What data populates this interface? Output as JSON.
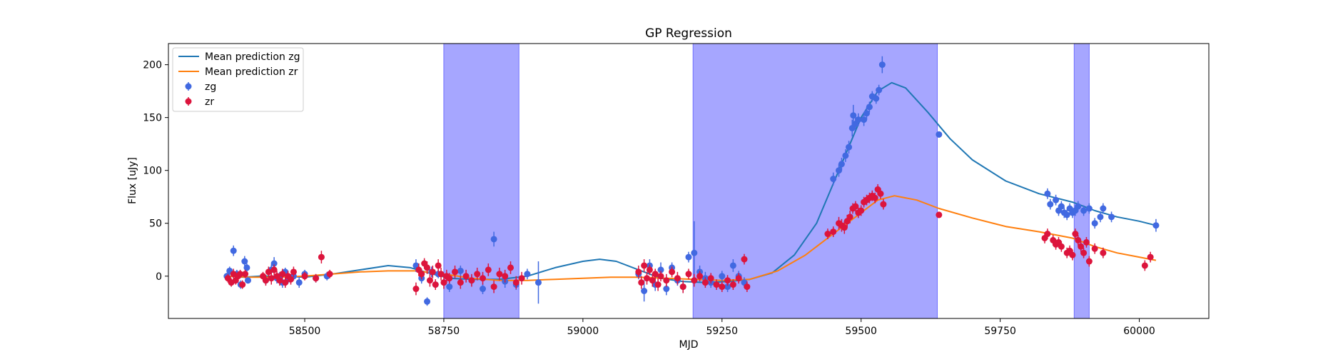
{
  "chart_data": {
    "type": "scatter",
    "title": "GP Regression",
    "xlabel": "MJD",
    "ylabel": "Flux [uJy]",
    "xlim": [
      58255,
      60125
    ],
    "ylim": [
      -40,
      220
    ],
    "xticks": [
      58500,
      58750,
      59000,
      59250,
      59500,
      59750,
      60000
    ],
    "yticks": [
      0,
      50,
      100,
      150,
      200
    ],
    "legend": {
      "position": "top-left",
      "entries": [
        "Mean prediction zg",
        "Mean prediction zr",
        "zg",
        "zr"
      ]
    },
    "shaded_regions": [
      {
        "x0": 58750,
        "x1": 58885,
        "color": "#a6a6ff"
      },
      {
        "x0": 59198,
        "x1": 59637,
        "color": "#a6a6ff"
      },
      {
        "x0": 59883,
        "x1": 59910,
        "color": "#a6a6ff"
      }
    ],
    "series": [
      {
        "name": "Mean prediction zg",
        "kind": "line",
        "color": "#1f77b4",
        "x": [
          58360,
          58390,
          58420,
          58460,
          58500,
          58550,
          58600,
          58650,
          58690,
          58730,
          58760,
          58800,
          58850,
          58900,
          58950,
          59000,
          59030,
          59060,
          59100,
          59140,
          59180,
          59220,
          59260,
          59300,
          59340,
          59380,
          59420,
          59460,
          59500,
          59530,
          59555,
          59580,
          59620,
          59660,
          59700,
          59760,
          59820,
          59880,
          59920,
          59960,
          60000,
          60030
        ],
        "y": [
          0,
          -1,
          0,
          0,
          -1,
          2,
          6,
          10,
          8,
          2,
          -2,
          -3,
          -3,
          0,
          8,
          14,
          16,
          14,
          6,
          -2,
          -5,
          -6,
          -5,
          -3,
          3,
          20,
          50,
          100,
          150,
          175,
          183,
          178,
          155,
          130,
          110,
          90,
          78,
          70,
          62,
          56,
          52,
          48
        ]
      },
      {
        "name": "Mean prediction zr",
        "kind": "line",
        "color": "#ff7f0e",
        "x": [
          58360,
          58400,
          58450,
          58500,
          58550,
          58600,
          58650,
          58700,
          58750,
          58800,
          58850,
          58900,
          58950,
          59000,
          59050,
          59100,
          59150,
          59200,
          59250,
          59300,
          59350,
          59400,
          59450,
          59500,
          59530,
          59560,
          59600,
          59640,
          59700,
          59760,
          59820,
          59880,
          59920,
          59960,
          60000,
          60030
        ],
        "y": [
          0,
          -1,
          -1,
          0,
          2,
          4,
          5,
          5,
          2,
          -2,
          -4,
          -4,
          -3,
          -2,
          -1,
          -1,
          -2,
          -3,
          -4,
          -3,
          5,
          20,
          40,
          60,
          72,
          76,
          72,
          64,
          55,
          47,
          42,
          36,
          28,
          22,
          18,
          15
        ]
      },
      {
        "name": "zg",
        "kind": "errorbar",
        "color": "#4169e1",
        "points": [
          [
            58360,
            0,
            3
          ],
          [
            58365,
            5,
            4
          ],
          [
            58372,
            24,
            5
          ],
          [
            58378,
            2,
            4
          ],
          [
            58385,
            -8,
            4
          ],
          [
            58392,
            14,
            5
          ],
          [
            58396,
            8,
            4
          ],
          [
            58398,
            -4,
            3
          ],
          [
            58430,
            -4,
            4
          ],
          [
            58440,
            6,
            5
          ],
          [
            58445,
            12,
            6
          ],
          [
            58450,
            -2,
            5
          ],
          [
            58455,
            0,
            4
          ],
          [
            58460,
            -6,
            5
          ],
          [
            58465,
            4,
            4
          ],
          [
            58470,
            -3,
            4
          ],
          [
            58480,
            0,
            4
          ],
          [
            58490,
            -6,
            5
          ],
          [
            58500,
            2,
            4
          ],
          [
            58520,
            -2,
            4
          ],
          [
            58540,
            0,
            4
          ],
          [
            58700,
            10,
            6
          ],
          [
            58710,
            -2,
            5
          ],
          [
            58720,
            -24,
            4
          ],
          [
            58728,
            4,
            5
          ],
          [
            58735,
            -8,
            5
          ],
          [
            58740,
            2,
            4
          ],
          [
            58760,
            -10,
            5
          ],
          [
            58780,
            5,
            5
          ],
          [
            58800,
            -4,
            5
          ],
          [
            58820,
            -12,
            5
          ],
          [
            58840,
            35,
            7
          ],
          [
            58860,
            -5,
            6
          ],
          [
            58880,
            -8,
            5
          ],
          [
            58900,
            2,
            5
          ],
          [
            58920,
            -6,
            20
          ],
          [
            59100,
            2,
            5
          ],
          [
            59110,
            -14,
            10
          ],
          [
            59120,
            10,
            6
          ],
          [
            59130,
            -8,
            6
          ],
          [
            59140,
            6,
            7
          ],
          [
            59150,
            -12,
            6
          ],
          [
            59160,
            8,
            5
          ],
          [
            59170,
            -4,
            5
          ],
          [
            59180,
            -10,
            6
          ],
          [
            59190,
            18,
            5
          ],
          [
            59200,
            22,
            30
          ],
          [
            59210,
            4,
            6
          ],
          [
            59220,
            -2,
            6
          ],
          [
            59230,
            -6,
            5
          ],
          [
            59250,
            0,
            5
          ],
          [
            59260,
            -10,
            5
          ],
          [
            59270,
            10,
            6
          ],
          [
            59280,
            0,
            5
          ],
          [
            59290,
            -6,
            5
          ],
          [
            59450,
            92,
            6
          ],
          [
            59460,
            100,
            6
          ],
          [
            59465,
            106,
            6
          ],
          [
            59472,
            114,
            6
          ],
          [
            59478,
            122,
            6
          ],
          [
            59484,
            140,
            8
          ],
          [
            59486,
            152,
            10
          ],
          [
            59490,
            144,
            6
          ],
          [
            59495,
            148,
            6
          ],
          [
            59505,
            148,
            6
          ],
          [
            59510,
            154,
            6
          ],
          [
            59515,
            160,
            5
          ],
          [
            59520,
            170,
            5
          ],
          [
            59527,
            168,
            5
          ],
          [
            59532,
            176,
            5
          ],
          [
            59538,
            200,
            8
          ],
          [
            59640,
            134,
            3
          ],
          [
            59835,
            78,
            5
          ],
          [
            59840,
            68,
            5
          ],
          [
            59850,
            72,
            5
          ],
          [
            59855,
            62,
            5
          ],
          [
            59860,
            66,
            5
          ],
          [
            59865,
            60,
            5
          ],
          [
            59870,
            58,
            5
          ],
          [
            59875,
            64,
            5
          ],
          [
            59880,
            60,
            5
          ],
          [
            59885,
            62,
            5
          ],
          [
            59890,
            66,
            5
          ],
          [
            59900,
            62,
            5
          ],
          [
            59910,
            64,
            5
          ],
          [
            59920,
            50,
            5
          ],
          [
            59930,
            56,
            5
          ],
          [
            59935,
            64,
            5
          ],
          [
            59950,
            56,
            5
          ],
          [
            60030,
            48,
            6
          ]
        ]
      },
      {
        "name": "zr",
        "kind": "errorbar",
        "color": "#dc143c",
        "points": [
          [
            58362,
            -2,
            4
          ],
          [
            58368,
            -6,
            4
          ],
          [
            58372,
            2,
            5
          ],
          [
            58376,
            -4,
            4
          ],
          [
            58380,
            0,
            4
          ],
          [
            58384,
            2,
            4
          ],
          [
            58388,
            -8,
            4
          ],
          [
            58393,
            2,
            4
          ],
          [
            58425,
            0,
            4
          ],
          [
            58430,
            -4,
            5
          ],
          [
            58435,
            4,
            5
          ],
          [
            58440,
            -2,
            6
          ],
          [
            58445,
            6,
            5
          ],
          [
            58450,
            0,
            5
          ],
          [
            58455,
            -4,
            5
          ],
          [
            58460,
            2,
            5
          ],
          [
            58465,
            -6,
            5
          ],
          [
            58470,
            0,
            5
          ],
          [
            58475,
            -3,
            5
          ],
          [
            58480,
            4,
            5
          ],
          [
            58500,
            0,
            4
          ],
          [
            58520,
            -2,
            4
          ],
          [
            58530,
            18,
            6
          ],
          [
            58545,
            2,
            4
          ],
          [
            58700,
            -12,
            6
          ],
          [
            58705,
            6,
            6
          ],
          [
            58710,
            2,
            5
          ],
          [
            58715,
            12,
            5
          ],
          [
            58720,
            8,
            6
          ],
          [
            58725,
            -4,
            6
          ],
          [
            58730,
            4,
            6
          ],
          [
            58735,
            -8,
            5
          ],
          [
            58740,
            10,
            6
          ],
          [
            58745,
            2,
            6
          ],
          [
            58750,
            -6,
            6
          ],
          [
            58755,
            0,
            6
          ],
          [
            58760,
            -2,
            5
          ],
          [
            58770,
            4,
            6
          ],
          [
            58780,
            -6,
            6
          ],
          [
            58790,
            0,
            6
          ],
          [
            58800,
            -4,
            6
          ],
          [
            58810,
            2,
            6
          ],
          [
            58820,
            -2,
            6
          ],
          [
            58830,
            6,
            6
          ],
          [
            58840,
            -10,
            6
          ],
          [
            58850,
            2,
            6
          ],
          [
            58860,
            0,
            6
          ],
          [
            58870,
            8,
            6
          ],
          [
            58880,
            -6,
            6
          ],
          [
            58890,
            -2,
            6
          ],
          [
            59100,
            4,
            6
          ],
          [
            59105,
            -6,
            6
          ],
          [
            59110,
            10,
            6
          ],
          [
            59115,
            -2,
            6
          ],
          [
            59120,
            6,
            5
          ],
          [
            59125,
            -4,
            6
          ],
          [
            59130,
            2,
            5
          ],
          [
            59135,
            -8,
            6
          ],
          [
            59140,
            0,
            5
          ],
          [
            59150,
            -4,
            6
          ],
          [
            59160,
            4,
            5
          ],
          [
            59170,
            -2,
            6
          ],
          [
            59180,
            -10,
            6
          ],
          [
            59190,
            2,
            5
          ],
          [
            59200,
            -4,
            6
          ],
          [
            59210,
            0,
            5
          ],
          [
            59220,
            -6,
            5
          ],
          [
            59230,
            -2,
            5
          ],
          [
            59240,
            -8,
            5
          ],
          [
            59250,
            -10,
            5
          ],
          [
            59260,
            -4,
            5
          ],
          [
            59270,
            -8,
            5
          ],
          [
            59280,
            -2,
            5
          ],
          [
            59290,
            16,
            5
          ],
          [
            59295,
            -10,
            5
          ],
          [
            59440,
            40,
            5
          ],
          [
            59450,
            42,
            5
          ],
          [
            59460,
            50,
            6
          ],
          [
            59465,
            48,
            6
          ],
          [
            59470,
            46,
            6
          ],
          [
            59475,
            52,
            6
          ],
          [
            59480,
            56,
            6
          ],
          [
            59485,
            64,
            5
          ],
          [
            59490,
            66,
            5
          ],
          [
            59495,
            60,
            5
          ],
          [
            59500,
            62,
            5
          ],
          [
            59505,
            70,
            5
          ],
          [
            59510,
            72,
            5
          ],
          [
            59515,
            74,
            5
          ],
          [
            59520,
            76,
            5
          ],
          [
            59525,
            74,
            5
          ],
          [
            59530,
            82,
            5
          ],
          [
            59535,
            78,
            5
          ],
          [
            59540,
            68,
            5
          ],
          [
            59640,
            58,
            3
          ],
          [
            59830,
            36,
            5
          ],
          [
            59835,
            40,
            5
          ],
          [
            59845,
            34,
            5
          ],
          [
            59850,
            30,
            5
          ],
          [
            59855,
            32,
            5
          ],
          [
            59860,
            28,
            5
          ],
          [
            59870,
            22,
            5
          ],
          [
            59875,
            24,
            5
          ],
          [
            59880,
            20,
            5
          ],
          [
            59885,
            40,
            5
          ],
          [
            59890,
            34,
            5
          ],
          [
            59895,
            28,
            5
          ],
          [
            59900,
            22,
            5
          ],
          [
            59905,
            32,
            5
          ],
          [
            59910,
            14,
            5
          ],
          [
            59920,
            26,
            5
          ],
          [
            59935,
            22,
            5
          ],
          [
            60010,
            10,
            5
          ],
          [
            60020,
            18,
            5
          ]
        ]
      }
    ]
  }
}
